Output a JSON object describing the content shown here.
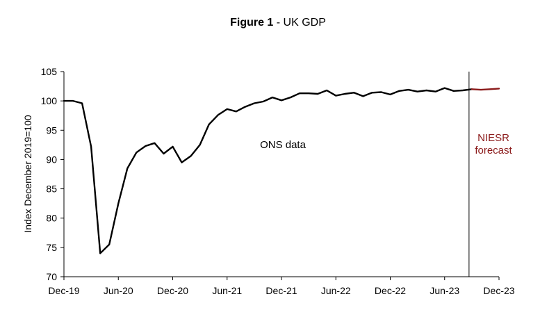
{
  "title": {
    "bold": "Figure 1",
    "rest": " - UK GDP"
  },
  "chart_data": {
    "type": "line",
    "ylabel": "Index December 2019=100",
    "xlabel": "",
    "ylim": [
      70,
      105
    ],
    "yticks": [
      70,
      75,
      80,
      85,
      90,
      95,
      100,
      105
    ],
    "x_ticks": [
      "Dec-19",
      "Jun-20",
      "Dec-20",
      "Jun-21",
      "Dec-21",
      "Jun-22",
      "Dec-22",
      "Jun-23",
      "Dec-23"
    ],
    "x_start": "Dec-19",
    "x_end": "Dec-23",
    "forecast_start": "Sep-23",
    "series": [
      {
        "name": "ONS data",
        "color": "#000000",
        "x": [
          "Dec-19",
          "Jan-20",
          "Feb-20",
          "Mar-20",
          "Apr-20",
          "May-20",
          "Jun-20",
          "Jul-20",
          "Aug-20",
          "Sep-20",
          "Oct-20",
          "Nov-20",
          "Dec-20",
          "Jan-21",
          "Feb-21",
          "Mar-21",
          "Apr-21",
          "May-21",
          "Jun-21",
          "Jul-21",
          "Aug-21",
          "Sep-21",
          "Oct-21",
          "Nov-21",
          "Dec-21",
          "Jan-22",
          "Feb-22",
          "Mar-22",
          "Apr-22",
          "May-22",
          "Jun-22",
          "Jul-22",
          "Aug-22",
          "Sep-22",
          "Oct-22",
          "Nov-22",
          "Dec-22",
          "Jan-23",
          "Feb-23",
          "Mar-23",
          "Apr-23",
          "May-23",
          "Jun-23",
          "Jul-23",
          "Aug-23",
          "Sep-23"
        ],
        "values": [
          100.0,
          100.0,
          99.6,
          92.2,
          74.0,
          75.5,
          82.5,
          88.5,
          91.2,
          92.3,
          92.8,
          91.0,
          92.2,
          89.5,
          90.6,
          92.5,
          96.0,
          97.6,
          98.6,
          98.2,
          99.0,
          99.6,
          99.9,
          100.6,
          100.1,
          100.6,
          101.3,
          101.3,
          101.2,
          101.8,
          100.9,
          101.2,
          101.4,
          100.8,
          101.4,
          101.5,
          101.1,
          101.7,
          101.9,
          101.6,
          101.8,
          101.6,
          102.2,
          101.7,
          101.8,
          102.0
        ]
      },
      {
        "name": "NIESR forecast",
        "color": "#8b1a1a",
        "x": [
          "Sep-23",
          "Oct-23",
          "Nov-23",
          "Dec-23"
        ],
        "values": [
          102.0,
          101.9,
          102.0,
          102.1
        ]
      }
    ],
    "annotations": [
      {
        "text": "ONS data",
        "color": "#000000"
      },
      {
        "text_lines": [
          "NIESR",
          "forecast"
        ],
        "color": "#8b1a1a"
      }
    ],
    "grid": false
  }
}
